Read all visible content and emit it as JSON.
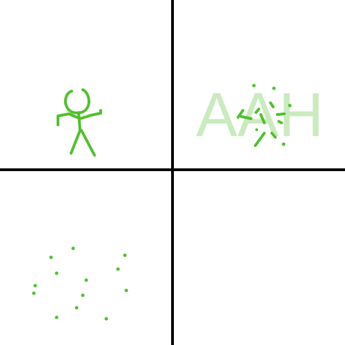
{
  "comic": {
    "panels": [
      {
        "position": "top-left",
        "content": "stick-figure"
      },
      {
        "position": "top-right",
        "content": "stick-figure-exploding",
        "sound_effect": "AAH"
      },
      {
        "position": "bottom-left",
        "content": "scattered-particles"
      },
      {
        "position": "bottom-right",
        "content": "empty"
      }
    ],
    "colors": {
      "figure": "#4fc02c",
      "sound_effect": "#4fc02c",
      "divider": "#000000",
      "background": "#ffffff"
    }
  }
}
